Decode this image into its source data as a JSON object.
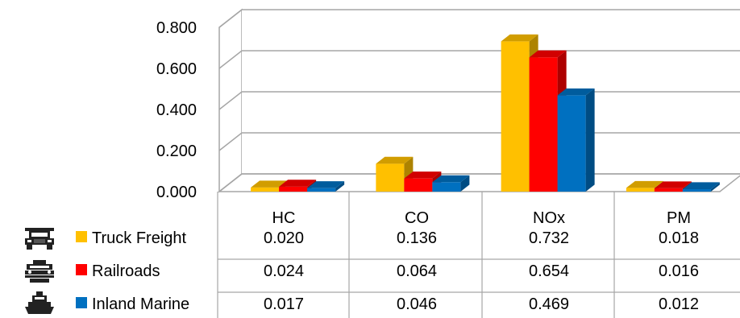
{
  "chart_data": {
    "type": "bar",
    "title": "",
    "xlabel": "",
    "ylabel": "",
    "ylim": [
      0,
      0.8
    ],
    "yticks": [
      "0.000",
      "0.200",
      "0.400",
      "0.600",
      "0.800"
    ],
    "ytick_values": [
      0,
      0.2,
      0.4,
      0.6,
      0.8
    ],
    "categories": [
      "HC",
      "CO",
      "NOx",
      "PM"
    ],
    "grid": true,
    "style": "3d-clustered-column",
    "legend_position": "left of data table",
    "series": [
      {
        "name": "Truck Freight",
        "color": "#FFC000",
        "icon": "truck-icon",
        "values": [
          0.02,
          0.136,
          0.732,
          0.018
        ],
        "labels": [
          "0.020",
          "0.136",
          "0.732",
          "0.018"
        ]
      },
      {
        "name": "Railroads",
        "color": "#FF0000",
        "icon": "locomotive-icon",
        "values": [
          0.024,
          0.064,
          0.654,
          0.016
        ],
        "labels": [
          "0.024",
          "0.064",
          "0.654",
          "0.016"
        ]
      },
      {
        "name": "Inland Marine",
        "color": "#0070C0",
        "icon": "ship-icon",
        "values": [
          0.017,
          0.046,
          0.469,
          0.012
        ],
        "labels": [
          "0.017",
          "0.046",
          "0.469",
          "0.012"
        ]
      }
    ]
  }
}
